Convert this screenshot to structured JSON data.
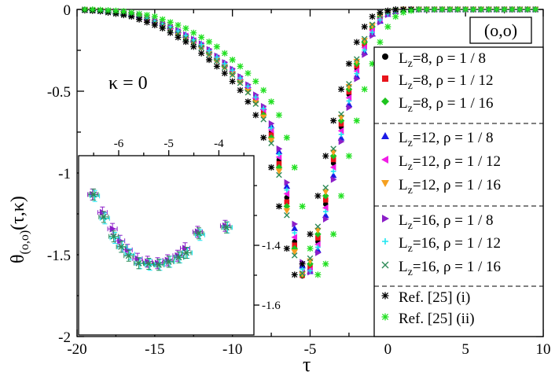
{
  "chart_data": [
    {
      "type": "scatter",
      "role": "main",
      "xlabel": "τ",
      "ylabel": "θ(o,o)(τ,κ)",
      "ylabel_main": "θ",
      "ylabel_sub": "(o,o)",
      "ylabel_args": "(τ,κ)",
      "xlim": [
        -20,
        10
      ],
      "ylim": [
        -2,
        0
      ],
      "xticks": [
        -20,
        -15,
        -10,
        -5,
        0,
        5,
        10
      ],
      "yticks": [
        -2,
        -1.5,
        -1,
        -0.5,
        0
      ],
      "xtick_labels": [
        "-20",
        "-15",
        "-10",
        "-5",
        "0",
        "5",
        "10"
      ],
      "ytick_labels": [
        "-2",
        "-1.5",
        "-1",
        "-0.5",
        "0"
      ],
      "annotation": "κ = 0",
      "boundary_label": "(o,o)",
      "legend_position": "right",
      "series": [
        {
          "name": "Lz=8, ρ=1/8",
          "label_main": "L",
          "label_sub": "z",
          "label_rest": "=8, ρ = 1 / 8",
          "marker": "circle",
          "color": "#000000",
          "shift": 0.0
        },
        {
          "name": "Lz=8, ρ=1/12",
          "label_main": "L",
          "label_sub": "z",
          "label_rest": "=8, ρ = 1 / 12",
          "marker": "square",
          "color": "#e8141c",
          "shift": -0.05
        },
        {
          "name": "Lz=8, ρ=1/16",
          "label_main": "L",
          "label_sub": "z",
          "label_rest": "=8, ρ = 1 / 16",
          "marker": "diamond",
          "color": "#1ec41e",
          "shift": -0.1
        },
        {
          "name": "Lz=12, ρ=1/8",
          "label_main": "L",
          "label_sub": "z",
          "label_rest": "=12, ρ = 1 / 8",
          "marker": "triangle-up",
          "color": "#1a1ae6",
          "shift": 0.15
        },
        {
          "name": "Lz=12, ρ=1/12",
          "label_main": "L",
          "label_sub": "z",
          "label_rest": "=12, ρ = 1 / 12",
          "marker": "triangle-left",
          "color": "#f01ee6",
          "shift": 0.05
        },
        {
          "name": "Lz=12, ρ=1/16",
          "label_main": "L",
          "label_sub": "z",
          "label_rest": "=12, ρ = 1 / 16",
          "marker": "triangle-down",
          "color": "#f5a020",
          "shift": -0.15
        },
        {
          "name": "Lz=16, ρ=1/8",
          "label_main": "L",
          "label_sub": "z",
          "label_rest": "=16, ρ = 1 / 8",
          "marker": "triangle-right",
          "color": "#8c1ec8",
          "shift": 0.2
        },
        {
          "name": "Lz=16, ρ=1/12",
          "label_main": "L",
          "label_sub": "z",
          "label_rest": "=16, ρ = 1 / 12",
          "marker": "plus",
          "color": "#1ee6f0",
          "shift": 0.1
        },
        {
          "name": "Lz=16, ρ=1/16",
          "label_main": "L",
          "label_sub": "z",
          "label_rest": "=16, ρ = 1 / 16",
          "marker": "cross",
          "color": "#2e8b57",
          "shift": -0.2
        },
        {
          "name": "Ref. [25] (i)",
          "label_main": "Ref. [25] (i)",
          "label_sub": "",
          "label_rest": "",
          "marker": "star",
          "color": "#000000",
          "shift": -0.6
        },
        {
          "name": "Ref. [25] (ii)",
          "label_main": "Ref. [25] (ii)",
          "label_sub": "",
          "label_rest": "",
          "marker": "star",
          "color": "#22e022",
          "shift": 0.9
        }
      ],
      "curve": {
        "x": [
          -20,
          -18,
          -16,
          -14,
          -12,
          -10,
          -9,
          -8,
          -7.5,
          -7,
          -6.5,
          -6,
          -5.5,
          -5,
          -4.5,
          -4,
          -3.5,
          -3,
          -2.5,
          -2,
          -1.5,
          -1,
          -0.5,
          0,
          1,
          2,
          4,
          6,
          8,
          10
        ],
        "y": [
          0,
          -0.01,
          -0.04,
          -0.11,
          -0.22,
          -0.38,
          -0.48,
          -0.62,
          -0.75,
          -0.92,
          -1.15,
          -1.42,
          -1.63,
          -1.59,
          -1.42,
          -1.19,
          -0.94,
          -0.72,
          -0.52,
          -0.36,
          -0.22,
          -0.12,
          -0.05,
          -0.02,
          0,
          0,
          0,
          0,
          0,
          0
        ]
      }
    },
    {
      "type": "scatter",
      "role": "inset",
      "xlim": [
        -6.8,
        -3.3
      ],
      "ylim": [
        -1.7,
        -1.1
      ],
      "xticks": [
        -6,
        -5,
        -4
      ],
      "yticks": [
        -1.4,
        -1.6
      ],
      "xtick_labels": [
        "-6",
        "-5",
        "-4"
      ],
      "ytick_labels": [
        "-1.4",
        "-1.6"
      ],
      "series": [
        {
          "name": "Lz=16, ρ=1/8",
          "color": "#8c1ec8",
          "marker": "triangle-right",
          "x": [
            -6.5,
            -6.3,
            -6.1,
            -5.95,
            -5.8,
            -5.6,
            -5.4,
            -5.2,
            -5.0,
            -4.8,
            -4.65,
            -4.4,
            -3.85
          ],
          "y": [
            -1.23,
            -1.29,
            -1.345,
            -1.385,
            -1.415,
            -1.445,
            -1.455,
            -1.46,
            -1.45,
            -1.435,
            -1.41,
            -1.355,
            -1.335
          ]
        },
        {
          "name": "Lz=16, ρ=1/12",
          "color": "#1ee6f0",
          "marker": "plus",
          "x": [
            -6.5,
            -6.3,
            -6.1,
            -5.95,
            -5.8,
            -5.6,
            -5.4,
            -5.2,
            -5.0,
            -4.8,
            -4.65,
            -4.4,
            -3.85
          ],
          "y": [
            -1.235,
            -1.31,
            -1.375,
            -1.405,
            -1.43,
            -1.46,
            -1.465,
            -1.465,
            -1.455,
            -1.44,
            -1.425,
            -1.365,
            -1.34
          ]
        },
        {
          "name": "Lz=16, ρ=1/16",
          "color": "#2e8b57",
          "marker": "cross",
          "x": [
            -6.5,
            -6.3,
            -6.1,
            -5.95,
            -5.8,
            -5.6,
            -5.4,
            -5.2,
            -5.0,
            -4.8,
            -4.65,
            -4.4,
            -3.85
          ],
          "y": [
            -1.23,
            -1.305,
            -1.37,
            -1.405,
            -1.435,
            -1.46,
            -1.462,
            -1.465,
            -1.455,
            -1.44,
            -1.425,
            -1.36,
            -1.34
          ]
        }
      ]
    }
  ]
}
